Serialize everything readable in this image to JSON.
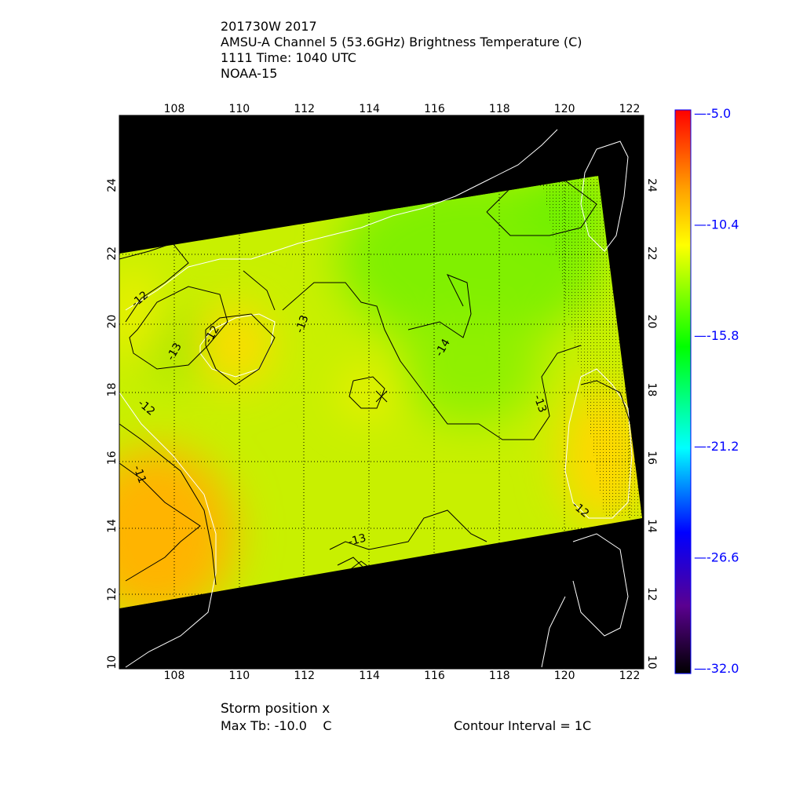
{
  "header": {
    "line1": "201730W 2017",
    "line2": "AMSU-A Channel 5 (53.6GHz) Brightness Temperature (C)",
    "line3": "1111 Time: 1040 UTC",
    "line4": "NOAA-15"
  },
  "footer": {
    "storm_position": "Storm position x",
    "max_tb": "Max Tb: -10.0    C",
    "contour_interval": "Contour Interval = 1C"
  },
  "colors": {
    "background": "#000000",
    "coastline": "#ffffff",
    "colorbar_labels": "#0000ff",
    "contours": "#000000"
  },
  "chart_data": {
    "type": "heatmap",
    "title": "AMSU-A Channel 5 (53.6GHz) Brightness Temperature (C)",
    "xlim": [
      106.3,
      122.4
    ],
    "ylim": [
      9.9,
      26.0
    ],
    "x_ticks": [
      "108",
      "110",
      "112",
      "114",
      "116",
      "118",
      "120",
      "122"
    ],
    "y_ticks": [
      "10",
      "12",
      "14",
      "16",
      "18",
      "20",
      "22",
      "24"
    ],
    "grid": true,
    "colorbar": {
      "range": [
        -32.0,
        -5.0
      ],
      "ticks": [
        "-5.0",
        "-10.4",
        "-15.8",
        "-21.2",
        "-26.6",
        "-32.0"
      ],
      "colormap": [
        "#000000",
        "#5a0090",
        "#0000ff",
        "#00ffff",
        "#00ff00",
        "#ffff00",
        "#ffa000",
        "#ff0000"
      ]
    },
    "contour_labels": [
      "-12",
      "-13",
      "-12",
      "-13",
      "-14",
      "-12",
      "-11",
      "-13",
      "-13",
      "-12"
    ],
    "storm_position": {
      "lon": 114.3,
      "lat": 17.9,
      "marker": "x"
    },
    "max_tb": -10.0,
    "contour_interval": 1
  }
}
